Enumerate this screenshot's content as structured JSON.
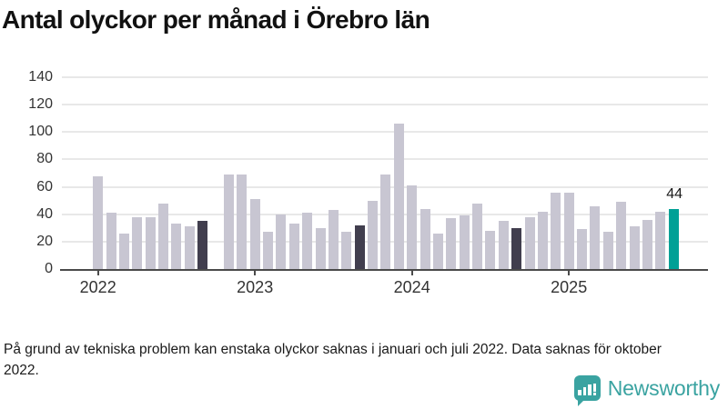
{
  "title": "Antal olyckor per månad i Örebro län",
  "footnote": "På grund av tekniska problem kan enstaka olyckor saknas i januari och juli 2022. Data saknas för oktober 2022.",
  "branding": {
    "name": "Newsworthy"
  },
  "colors": {
    "bar_default": "#c8c6d2",
    "bar_reference": "#413e4e",
    "bar_current": "#00a096",
    "accent": "#3aa3a1",
    "gridline": "#e8e8e8",
    "axis": "#4a4a4a",
    "tick_text": "#333333",
    "title_text": "#111111"
  },
  "chart_data": {
    "type": "bar",
    "title": "Antal olyckor per månad i Örebro län",
    "xlabel": "",
    "ylabel": "",
    "ylim": [
      0,
      140
    ],
    "yticks": [
      0,
      20,
      40,
      60,
      80,
      100,
      120,
      140
    ],
    "grid": true,
    "legend": "none",
    "x_tick_labels": [
      "2022",
      "2023",
      "2024",
      "2025"
    ],
    "value_label": {
      "text": "44",
      "month": "2025-09"
    },
    "missing_months": [
      "2022-10"
    ],
    "series": [
      {
        "name": "Antal olyckor",
        "points": [
          {
            "month": "2022-01",
            "value": 68,
            "role": "default"
          },
          {
            "month": "2022-02",
            "value": 41,
            "role": "default"
          },
          {
            "month": "2022-03",
            "value": 26,
            "role": "default"
          },
          {
            "month": "2022-04",
            "value": 38,
            "role": "default"
          },
          {
            "month": "2022-05",
            "value": 38,
            "role": "default"
          },
          {
            "month": "2022-06",
            "value": 48,
            "role": "default"
          },
          {
            "month": "2022-07",
            "value": 33,
            "role": "default"
          },
          {
            "month": "2022-08",
            "value": 31,
            "role": "default"
          },
          {
            "month": "2022-09",
            "value": 35,
            "role": "reference"
          },
          {
            "month": "2022-10",
            "value": null,
            "role": "missing"
          },
          {
            "month": "2022-11",
            "value": 69,
            "role": "default"
          },
          {
            "month": "2022-12",
            "value": 69,
            "role": "default"
          },
          {
            "month": "2023-01",
            "value": 51,
            "role": "default"
          },
          {
            "month": "2023-02",
            "value": 27,
            "role": "default"
          },
          {
            "month": "2023-03",
            "value": 40,
            "role": "default"
          },
          {
            "month": "2023-04",
            "value": 33,
            "role": "default"
          },
          {
            "month": "2023-05",
            "value": 41,
            "role": "default"
          },
          {
            "month": "2023-06",
            "value": 30,
            "role": "default"
          },
          {
            "month": "2023-07",
            "value": 43,
            "role": "default"
          },
          {
            "month": "2023-08",
            "value": 27,
            "role": "default"
          },
          {
            "month": "2023-09",
            "value": 32,
            "role": "reference"
          },
          {
            "month": "2023-10",
            "value": 50,
            "role": "default"
          },
          {
            "month": "2023-11",
            "value": 69,
            "role": "default"
          },
          {
            "month": "2023-12",
            "value": 106,
            "role": "default"
          },
          {
            "month": "2024-01",
            "value": 61,
            "role": "default"
          },
          {
            "month": "2024-02",
            "value": 44,
            "role": "default"
          },
          {
            "month": "2024-03",
            "value": 26,
            "role": "default"
          },
          {
            "month": "2024-04",
            "value": 37,
            "role": "default"
          },
          {
            "month": "2024-05",
            "value": 39,
            "role": "default"
          },
          {
            "month": "2024-06",
            "value": 48,
            "role": "default"
          },
          {
            "month": "2024-07",
            "value": 28,
            "role": "default"
          },
          {
            "month": "2024-08",
            "value": 35,
            "role": "default"
          },
          {
            "month": "2024-09",
            "value": 30,
            "role": "reference"
          },
          {
            "month": "2024-10",
            "value": 38,
            "role": "default"
          },
          {
            "month": "2024-11",
            "value": 42,
            "role": "default"
          },
          {
            "month": "2024-12",
            "value": 56,
            "role": "default"
          },
          {
            "month": "2025-01",
            "value": 56,
            "role": "default"
          },
          {
            "month": "2025-02",
            "value": 29,
            "role": "default"
          },
          {
            "month": "2025-03",
            "value": 46,
            "role": "default"
          },
          {
            "month": "2025-04",
            "value": 27,
            "role": "default"
          },
          {
            "month": "2025-05",
            "value": 49,
            "role": "default"
          },
          {
            "month": "2025-06",
            "value": 31,
            "role": "default"
          },
          {
            "month": "2025-07",
            "value": 36,
            "role": "default"
          },
          {
            "month": "2025-08",
            "value": 42,
            "role": "default"
          },
          {
            "month": "2025-09",
            "value": 44,
            "role": "current"
          }
        ]
      }
    ]
  }
}
